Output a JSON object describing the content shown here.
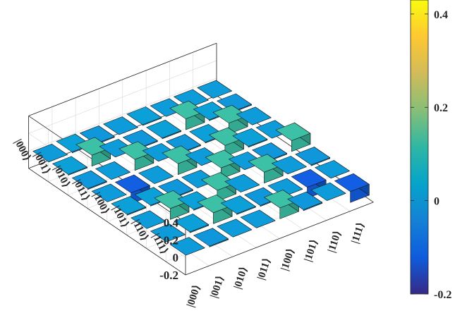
{
  "chart_data": {
    "type": "bar3d",
    "title": "",
    "xlabel": "",
    "ylabel": "",
    "zlabel": "",
    "basis": [
      "|000⟩",
      "|001⟩",
      "|010⟩",
      "|011⟩",
      "|100⟩",
      "|101⟩",
      "|110⟩",
      "|111⟩"
    ],
    "rows_axis_ticks": [
      "|000⟩",
      "|001⟩",
      "|010⟩",
      "|011⟩",
      "|100⟩",
      "|101⟩",
      "|110⟩",
      "|111⟩"
    ],
    "cols_axis_ticks": [
      "|000⟩",
      "|001⟩",
      "|010⟩",
      "|011⟩",
      "|100⟩",
      "|101⟩",
      "|110⟩",
      "|111⟩"
    ],
    "zlim": [
      -0.2,
      0.4
    ],
    "z_ticks": [
      -0.2,
      0,
      0.2,
      0.4
    ],
    "z_tick_labels": [
      "-0.2",
      "0",
      "0.2",
      "0.4"
    ],
    "grid": true,
    "colormap": "parula",
    "color_stops": [
      "#352a87",
      "#0f5cdd",
      "#1481d6",
      "#06a4ca",
      "#2eb7a4",
      "#87bf77",
      "#d1bb59",
      "#fec832",
      "#f9fb0e"
    ],
    "colorbar": {
      "limits": [
        -0.2,
        0.43
      ],
      "ticks": [
        -0.2,
        0,
        0.2,
        0.4
      ],
      "tick_labels": [
        "-0.2",
        "0",
        "0.2",
        "0.4"
      ],
      "placement": "right"
    },
    "values": [
      [
        0.0,
        0.01,
        -0.01,
        0.0,
        0.01,
        0.0,
        0.0,
        0.0
      ],
      [
        0.01,
        0.125,
        0.0,
        -0.01,
        0.01,
        0.125,
        0.01,
        -0.01
      ],
      [
        -0.01,
        0.0,
        0.125,
        0.0,
        -0.01,
        0.01,
        0.125,
        0.0
      ],
      [
        0.0,
        -0.125,
        0.0,
        0.125,
        0.0,
        0.125,
        0.01,
        0.0
      ],
      [
        0.01,
        0.01,
        -0.01,
        0.0,
        0.125,
        0.0,
        -0.01,
        0.125
      ],
      [
        0.0,
        0.125,
        0.01,
        0.125,
        0.0,
        0.125,
        0.0,
        -0.01
      ],
      [
        0.0,
        0.01,
        0.125,
        0.01,
        -0.01,
        0.0,
        -0.125,
        0.0
      ],
      [
        0.0,
        -0.01,
        0.0,
        0.0,
        0.125,
        -0.01,
        0.0,
        -0.125
      ]
    ]
  }
}
